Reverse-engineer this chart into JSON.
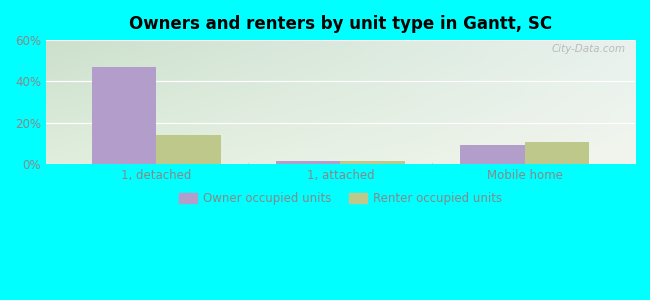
{
  "title": "Owners and renters by unit type in Gantt, SC",
  "categories": [
    "1, detached",
    "1, attached",
    "Mobile home"
  ],
  "owner_values": [
    47.0,
    1.5,
    9.0
  ],
  "renter_values": [
    14.0,
    1.2,
    10.5
  ],
  "owner_color": "#b39dca",
  "renter_color": "#bdc88a",
  "ylim": [
    0,
    60
  ],
  "yticks": [
    0,
    20,
    40,
    60
  ],
  "ytick_labels": [
    "0%",
    "20%",
    "40%",
    "60%"
  ],
  "legend_owner": "Owner occupied units",
  "legend_renter": "Renter occupied units",
  "bg_top_left": "#d6e8d6",
  "bg_top_right": "#e8f0f0",
  "bg_bottom": "#f0f5e8",
  "outer_color": "#00ffff",
  "watermark": "City-Data.com",
  "bar_width": 0.35,
  "grid_color": "#ffffff",
  "tick_color": "#888888",
  "separator_color": "#cccccc"
}
